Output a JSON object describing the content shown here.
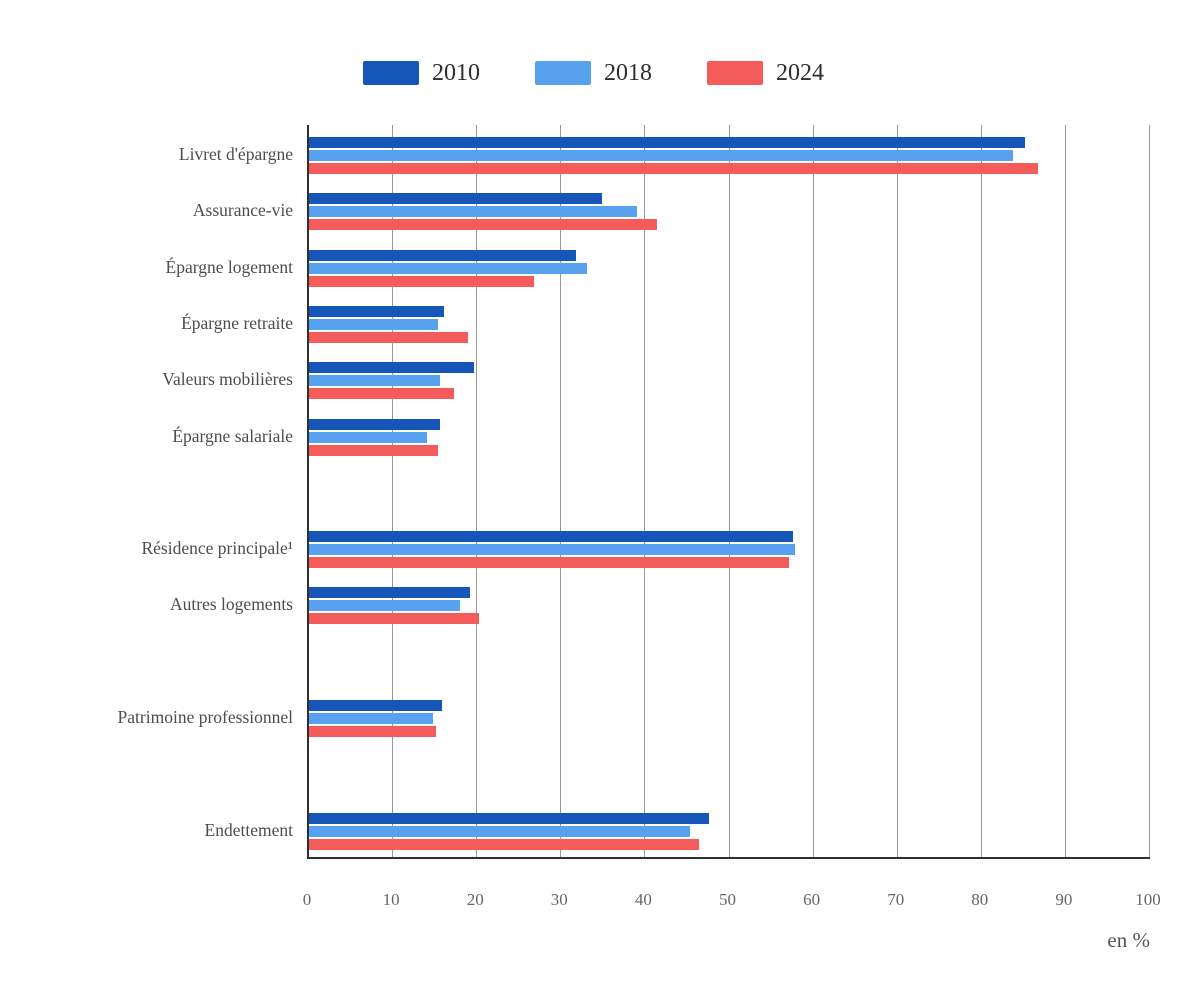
{
  "legend": {
    "items": [
      {
        "label": "2010",
        "color": "#1656b8"
      },
      {
        "label": "2018",
        "color": "#58a1ee"
      },
      {
        "label": "2024",
        "color": "#f45c5c"
      }
    ]
  },
  "chart_data": {
    "type": "bar",
    "orientation": "horizontal",
    "unit_label": "en %",
    "x_axis": {
      "min": 0,
      "max": 100,
      "step": 10,
      "tick_labels": [
        "0",
        "10",
        "20",
        "30",
        "40",
        "50",
        "60",
        "70",
        "80",
        "90",
        "100"
      ]
    },
    "grid": true,
    "legend_position": "top",
    "series_names": [
      "2010",
      "2018",
      "2024"
    ],
    "series_colors": [
      "#1656b8",
      "#58a1ee",
      "#f45c5c"
    ],
    "categories": [
      "Livret d'épargne",
      "Assurance-vie",
      "Épargne logement",
      "Épargne retraite",
      "Valeurs mobilières",
      "Épargne salariale",
      "Résidence principale¹",
      "Autres logements",
      "Patrimoine professionnel",
      "Endettement"
    ],
    "blocks": [
      {
        "rows": [
          {
            "label": "Livret d'épargne",
            "values": [
              85.1,
              83.7,
              86.7
            ]
          },
          {
            "label": "Assurance-vie",
            "values": [
              34.8,
              39.0,
              41.4
            ]
          },
          {
            "label": "Épargne logement",
            "values": [
              31.7,
              33.1,
              26.7
            ]
          },
          {
            "label": "Épargne retraite",
            "values": [
              16.0,
              15.3,
              18.9
            ]
          },
          {
            "label": "Valeurs mobilières",
            "values": [
              19.6,
              15.6,
              17.2
            ]
          },
          {
            "label": "Épargne salariale",
            "values": [
              15.6,
              14.0,
              15.3
            ]
          }
        ]
      },
      {
        "rows": [
          {
            "label": "Résidence principale¹",
            "values": [
              57.5,
              57.8,
              57.1
            ]
          },
          {
            "label": "Autres logements",
            "values": [
              19.1,
              18.0,
              20.2
            ]
          }
        ]
      },
      {
        "rows": [
          {
            "label": "Patrimoine professionnel",
            "values": [
              15.8,
              14.8,
              15.1
            ]
          }
        ]
      },
      {
        "rows": [
          {
            "label": "Endettement",
            "values": [
              47.6,
              45.3,
              46.4
            ]
          }
        ]
      }
    ]
  }
}
